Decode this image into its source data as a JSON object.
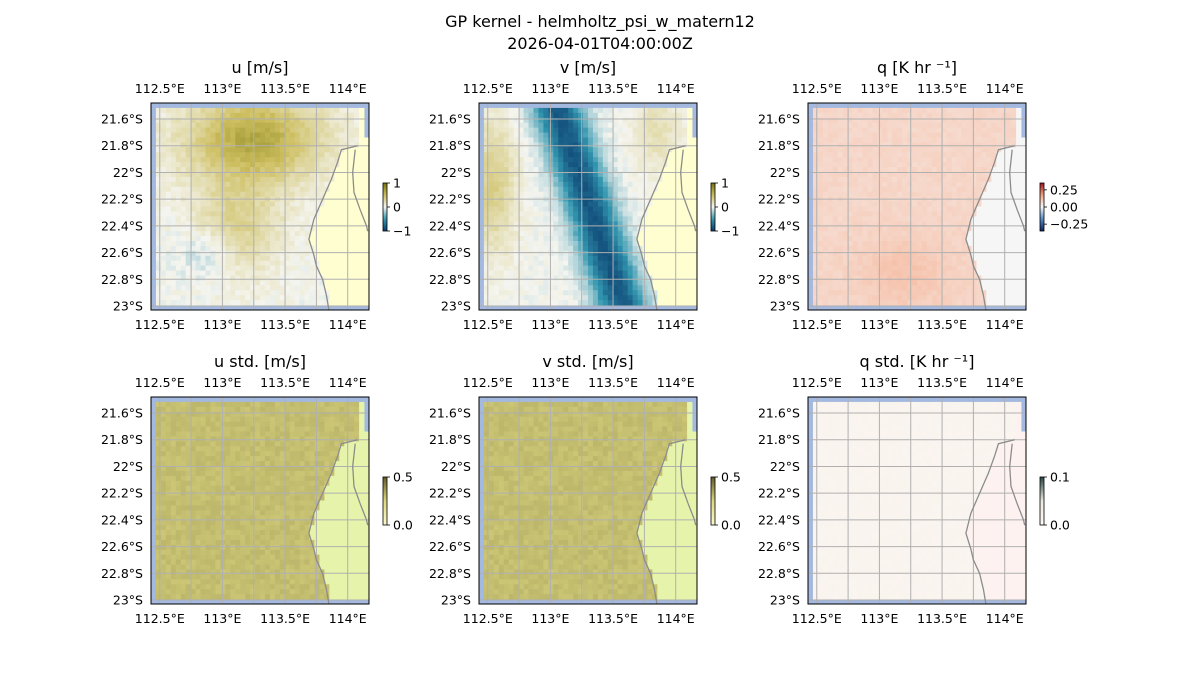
{
  "figure": {
    "title": "GP kernel - helmholtz_psi_w_matern12",
    "subtitle": "2026-04-01T04:00:00Z"
  },
  "colors": {
    "ocean": "#a4b9df",
    "land": "#fefed0",
    "coast": "#8c8c8c",
    "grid": "#b0b0b0"
  },
  "chart_data": [
    {
      "type": "heatmap",
      "title": "u [m/s]",
      "field": "u",
      "cmap": "diverging-olive-teal",
      "colorbar": {
        "ticks": [
          1,
          0,
          -1
        ],
        "tick_labels": [
          "1",
          "0",
          "−1"
        ],
        "range": [
          -1,
          1
        ]
      },
      "x_ticks": [
        "112.5°E",
        "113°E",
        "113.5°E",
        "114°E"
      ],
      "y_ticks": [
        "21.6°S",
        "21.8°S",
        "22°S",
        "22.2°S",
        "22.4°S",
        "22.6°S",
        "22.8°S",
        "23°S"
      ],
      "lon_range": [
        112.43,
        114.17
      ],
      "lat_range": [
        -23.03,
        -21.48
      ]
    },
    {
      "type": "heatmap",
      "title": "v [m/s]",
      "field": "v",
      "cmap": "diverging-olive-teal",
      "colorbar": {
        "ticks": [
          1,
          0,
          -1
        ],
        "tick_labels": [
          "1",
          "0",
          "−1"
        ],
        "range": [
          -1,
          1
        ]
      },
      "x_ticks": [
        "112.5°E",
        "113°E",
        "113.5°E",
        "114°E"
      ],
      "y_ticks": [
        "21.6°S",
        "21.8°S",
        "22°S",
        "22.2°S",
        "22.4°S",
        "22.6°S",
        "22.8°S",
        "23°S"
      ],
      "lon_range": [
        112.43,
        114.17
      ],
      "lat_range": [
        -23.03,
        -21.48
      ]
    },
    {
      "type": "heatmap",
      "title": "q [K hr ⁻¹]",
      "field": "q",
      "cmap": "diverging-red-blue",
      "colorbar": {
        "ticks": [
          0.25,
          0.0,
          -0.25
        ],
        "tick_labels": [
          "0.25",
          "0.00",
          "−0.25"
        ],
        "range": [
          -0.35,
          0.35
        ]
      },
      "x_ticks": [
        "112.5°E",
        "113°E",
        "113.5°E",
        "114°E"
      ],
      "y_ticks": [
        "21.6°S",
        "21.8°S",
        "22°S",
        "22.2°S",
        "22.4°S",
        "22.6°S",
        "22.8°S",
        "23°S"
      ],
      "lon_range": [
        112.43,
        114.17
      ],
      "lat_range": [
        -23.03,
        -21.48
      ]
    },
    {
      "type": "heatmap",
      "title": "u std. [m/s]",
      "field": "ustd",
      "cmap": "sequential-olive",
      "colorbar": {
        "ticks": [
          0.5,
          0.0
        ],
        "tick_labels": [
          "0.5",
          "0.0"
        ],
        "range": [
          0,
          0.5
        ]
      },
      "x_ticks": [
        "112.5°E",
        "113°E",
        "113.5°E",
        "114°E"
      ],
      "y_ticks": [
        "21.6°S",
        "21.8°S",
        "22°S",
        "22.2°S",
        "22.4°S",
        "22.6°S",
        "22.8°S",
        "23°S"
      ],
      "lon_range": [
        112.43,
        114.17
      ],
      "lat_range": [
        -23.03,
        -21.48
      ]
    },
    {
      "type": "heatmap",
      "title": "v std. [m/s]",
      "field": "vstd",
      "cmap": "sequential-olive",
      "colorbar": {
        "ticks": [
          0.5,
          0.0
        ],
        "tick_labels": [
          "0.5",
          "0.0"
        ],
        "range": [
          0,
          0.5
        ]
      },
      "x_ticks": [
        "112.5°E",
        "113°E",
        "113.5°E",
        "114°E"
      ],
      "y_ticks": [
        "21.6°S",
        "21.8°S",
        "22°S",
        "22.2°S",
        "22.4°S",
        "22.6°S",
        "22.8°S",
        "23°S"
      ],
      "lon_range": [
        112.43,
        114.17
      ],
      "lat_range": [
        -23.03,
        -21.48
      ]
    },
    {
      "type": "heatmap",
      "title": "q std. [K hr ⁻¹]",
      "field": "qstd",
      "cmap": "sequential-warm-gray",
      "colorbar": {
        "ticks": [
          0.1,
          0.0
        ],
        "tick_labels": [
          "0.1",
          "0.0"
        ],
        "range": [
          0,
          0.1
        ]
      },
      "x_ticks": [
        "112.5°E",
        "113°E",
        "113.5°E",
        "114°E"
      ],
      "y_ticks": [
        "21.6°S",
        "21.8°S",
        "22°S",
        "22.2°S",
        "22.4°S",
        "22.6°S",
        "22.8°S",
        "23°S"
      ],
      "lon_range": [
        112.43,
        114.17
      ],
      "lat_range": [
        -23.03,
        -21.48
      ]
    }
  ]
}
